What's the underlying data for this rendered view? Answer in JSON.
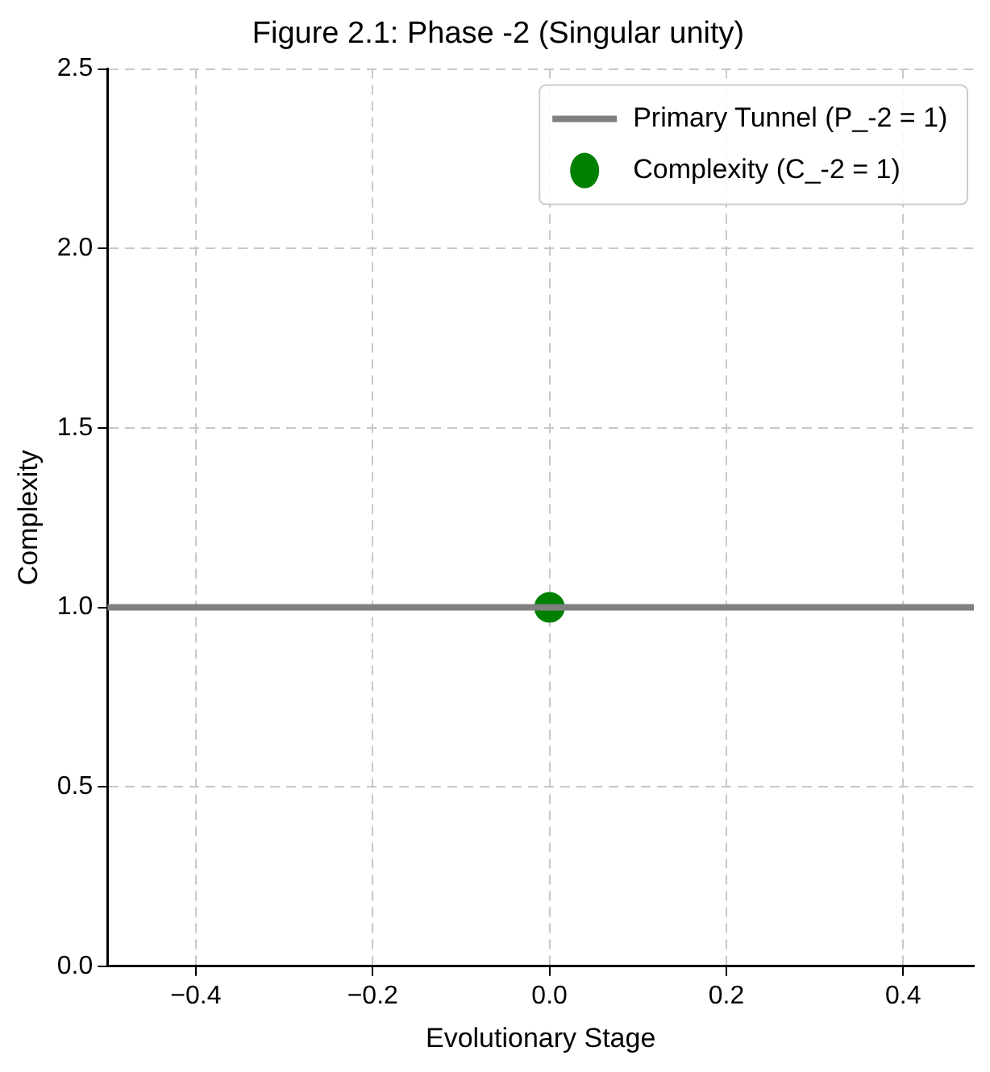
{
  "chart_data": {
    "type": "line",
    "title": "Figure 2.1: Phase -2 (Singular unity)",
    "xlabel": "Evolutionary Stage",
    "ylabel": "Complexity",
    "xlim": [
      -0.5,
      0.48
    ],
    "xticks": [
      {
        "value": -0.4,
        "label": "−0.4"
      },
      {
        "value": -0.2,
        "label": "−0.2"
      },
      {
        "value": 0,
        "label": "0.0"
      },
      {
        "value": 0.2,
        "label": "0.2"
      },
      {
        "value": 0.4,
        "label": "0.4"
      }
    ],
    "ylim": [
      0,
      2.5
    ],
    "yticks": [
      {
        "value": 0,
        "label": "0.0"
      },
      {
        "value": 0.5,
        "label": "0.5"
      },
      {
        "value": 1,
        "label": "1.0"
      },
      {
        "value": 1.5,
        "label": "1.5"
      },
      {
        "value": 2,
        "label": "2.0"
      },
      {
        "value": 2.5,
        "label": "2.5"
      }
    ],
    "grid": true,
    "legend": "top right",
    "line_style": "dashed",
    "series": [
      {
        "name": "Primary Tunnel (P_-2 = 1)",
        "type": "line",
        "color": "#808080",
        "x": [
          -0.5,
          0.48
        ],
        "values": [
          1,
          1
        ],
        "marker": "none",
        "line_style": "solid"
      },
      {
        "name": "Complexity (C_-2 = 1)",
        "type": "scatter",
        "color": "#008000",
        "x": [
          0
        ],
        "values": [
          1
        ],
        "marker": "circle"
      }
    ]
  }
}
